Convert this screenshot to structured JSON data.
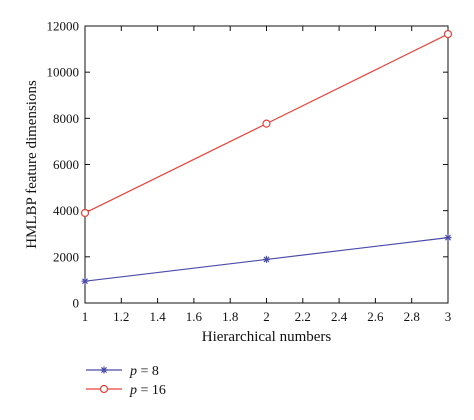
{
  "chart_data": {
    "type": "line",
    "title": "",
    "xlabel": "Hierarchical numbers",
    "ylabel": "HMLBP feature dimensions",
    "xlim": [
      1,
      3
    ],
    "ylim": [
      0,
      12000
    ],
    "xticks": [
      "1",
      "1.2",
      "1.4",
      "1.6",
      "1.8",
      "2",
      "2.2",
      "2.4",
      "2.6",
      "2.8",
      "3"
    ],
    "yticks": [
      "0",
      "2000",
      "4000",
      "6000",
      "8000",
      "10000",
      "12000"
    ],
    "grid": false,
    "legend_position": "bottom-left",
    "series": [
      {
        "name": "p = 8",
        "name_var": "p",
        "name_value": "= 8",
        "color": "#4b4bab",
        "marker": "asterisk",
        "x": [
          1,
          2,
          3
        ],
        "y": [
          944,
          1888,
          2832
        ]
      },
      {
        "name": "p = 16",
        "name_var": "p",
        "name_value": "= 16",
        "color": "#e8413a",
        "marker": "circle",
        "x": [
          1,
          2,
          3
        ],
        "y": [
          3900,
          7770,
          11650
        ]
      }
    ]
  }
}
